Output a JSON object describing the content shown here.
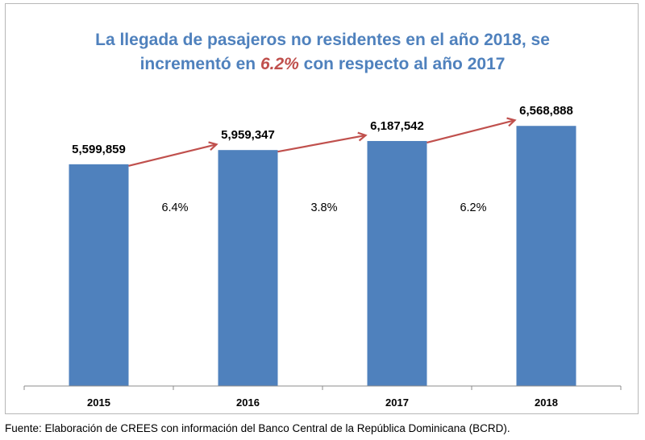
{
  "title": {
    "line1": "La llegada de pasajeros no residentes en el año 2018, se",
    "line2_pre": "incrementó en ",
    "line2_highlight": "6.2%",
    "line2_post": " con respecto al año 2017"
  },
  "source": "Fuente: Elaboración de CREES con información del Banco Central de la República Dominicana (BCRD).",
  "colors": {
    "bar": "#4f81bd",
    "arrow": "#c0504d",
    "title": "#4f81bd",
    "highlight": "#c0504d"
  },
  "chart_data": {
    "type": "bar",
    "title": "La llegada de pasajeros no residentes en el año 2018, se incrementó en 6.2% con respecto al año 2017",
    "categories": [
      "2015",
      "2016",
      "2017",
      "2018"
    ],
    "values": [
      5599859,
      5959347,
      6187542,
      6568888
    ],
    "value_labels": [
      "5,599,859",
      "5,959,347",
      "6,187,542",
      "6,568,888"
    ],
    "growth_labels": [
      "6.4%",
      "3.8%",
      "6.2%"
    ],
    "xlabel": "",
    "ylabel": "",
    "ylim": [
      0,
      8100000
    ],
    "grid": false
  }
}
